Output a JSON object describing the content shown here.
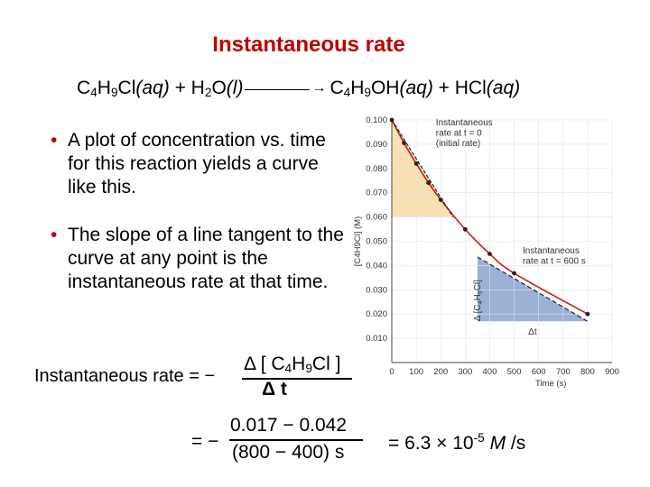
{
  "slide": {
    "title": "Instantaneous rate",
    "reaction": {
      "r1_a": "C",
      "r1_s1": "4",
      "r1_b": "H",
      "r1_s2": "9",
      "r1_c": "Cl",
      "r1_state": "(aq)",
      "plus1": " + ",
      "r2_a": "H",
      "r2_s1": "2",
      "r2_b": "O",
      "r2_state": "(l)",
      "p1_a": "C",
      "p1_s1": "4",
      "p1_b": "H",
      "p1_s2": "9",
      "p1_c": "OH",
      "p1_state": "(aq)",
      "plus2": " + ",
      "p2": "HCl",
      "p2_state": "(aq)"
    },
    "bullets": [
      "A plot of concentration vs. time for this reaction yields a curve like this.",
      "The slope of a line tangent to the curve at any point is the instantaneous rate at that time."
    ],
    "bullet_symbol": "•",
    "rate_formula": {
      "label": "Instantaneous rate = −",
      "num_prefix": "Δ [ C",
      "num_s1": "4",
      "num_mid": "H",
      "num_s2": "9",
      "num_suffix": "Cl ]",
      "den": "Δ t"
    },
    "calculation": {
      "eq": "= −",
      "numerator": "0.017 − 0.042",
      "denominator": "(800 − 400) s",
      "result_prefix": "= 6.3 × 10",
      "result_exp": "-5",
      "result_unit_italic": "M",
      "result_unit_rest": " /s"
    }
  },
  "chart_data": {
    "type": "line",
    "xlabel": "Time (s)",
    "ylabel": "[C4H9Cl] (M)",
    "xlim": [
      0,
      900
    ],
    "ylim": [
      0,
      0.1
    ],
    "x_ticks": [
      "0",
      "100",
      "200",
      "300",
      "400",
      "500",
      "600",
      "700",
      "800",
      "900"
    ],
    "y_ticks": [
      "0.010",
      "0.020",
      "0.030",
      "0.040",
      "0.050",
      "0.060",
      "0.070",
      "0.080",
      "0.090",
      "0.100"
    ],
    "series": [
      {
        "x": [
          0,
          50,
          100,
          150,
          200,
          300,
          400,
          500,
          800
        ],
        "y": [
          0.1,
          0.0905,
          0.082,
          0.0741,
          0.0671,
          0.0549,
          0.0448,
          0.0368,
          0.02
        ]
      }
    ],
    "tangent_lines": [
      {
        "x": [
          0,
          250
        ],
        "y": [
          0.1,
          0.06
        ]
      },
      {
        "x": [
          350,
          800
        ],
        "y": [
          0.0435,
          0.017
        ]
      }
    ],
    "annotations": {
      "initial": [
        "Instantaneous",
        "rate at t = 0",
        "(initial rate)"
      ],
      "at600": [
        "Instantaneous",
        "rate at t = 600 s"
      ],
      "delta_conc_prefix": "Δ [C",
      "delta_conc_s1": "4",
      "delta_conc_mid": "H",
      "delta_conc_s2": "9",
      "delta_conc_suffix": "Cl]",
      "delta_t": "Δt"
    },
    "colors": {
      "curve": "#d01c1c",
      "tangent": "#222222",
      "triangle_initial": "#f7e1b4",
      "triangle_600": "#9bb1d6",
      "points": "#222222"
    }
  }
}
